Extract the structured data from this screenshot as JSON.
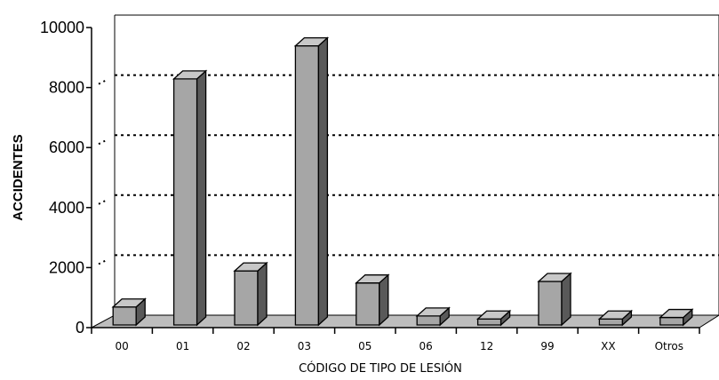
{
  "chart_data": {
    "type": "bar",
    "categories": [
      "00",
      "01",
      "02",
      "03",
      "05",
      "06",
      "12",
      "99",
      "XX",
      "Otros"
    ],
    "values": [
      600,
      8200,
      1800,
      9300,
      1400,
      300,
      200,
      1450,
      200,
      250
    ],
    "xlabel": "CÓDIGO DE TIPO DE LESIÓN",
    "ylabel": "ACCIDENTES",
    "ylim": [
      0,
      10000
    ],
    "yticks": [
      0,
      2000,
      4000,
      6000,
      8000,
      10000
    ],
    "grid": true,
    "style": "3d",
    "colors": {
      "bar_front": "#a6a6a6",
      "bar_top": "#c8c8c8",
      "bar_side": "#595959",
      "floor": "#bdbdbd",
      "outline": "#000000"
    }
  }
}
